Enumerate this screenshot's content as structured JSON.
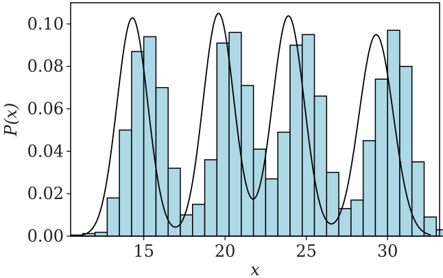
{
  "chart_data": {
    "type": "bar",
    "subtype": "histogram-with-density-curve",
    "title": "",
    "xlabel": "x",
    "ylabel": "P(x)",
    "xlim": [
      10.5,
      33.2
    ],
    "ylim": [
      0,
      0.11
    ],
    "xticks": [
      15,
      20,
      25,
      30
    ],
    "yticks": [
      0.0,
      0.02,
      0.04,
      0.06,
      0.08,
      0.1
    ],
    "ytick_labels": [
      "0.00",
      "0.02",
      "0.04",
      "0.06",
      "0.08",
      "0.10"
    ],
    "bin_width": 0.75,
    "bin_start": 10.5,
    "bin_density": [
      0.0005,
      0.0012,
      0.0018,
      0.018,
      0.05,
      0.087,
      0.094,
      0.07,
      0.032,
      0.01,
      0.015,
      0.036,
      0.091,
      0.096,
      0.071,
      0.041,
      0.027,
      0.049,
      0.09,
      0.095,
      0.066,
      0.03,
      0.013,
      0.017,
      0.045,
      0.074,
      0.097,
      0.08,
      0.035,
      0.009,
      0.003
    ],
    "curve": {
      "components": [
        {
          "mean": 14.3,
          "sd": 0.95,
          "weight": 0.245
        },
        {
          "mean": 19.6,
          "sd": 0.95,
          "weight": 0.25
        },
        {
          "mean": 23.9,
          "sd": 0.98,
          "weight": 0.255
        },
        {
          "mean": 29.3,
          "sd": 1.05,
          "weight": 0.25
        }
      ]
    },
    "bar_color": "#add8e6",
    "bar_edge_color": "#000000",
    "curve_color": "#000000",
    "grid": false,
    "legend": "none"
  }
}
